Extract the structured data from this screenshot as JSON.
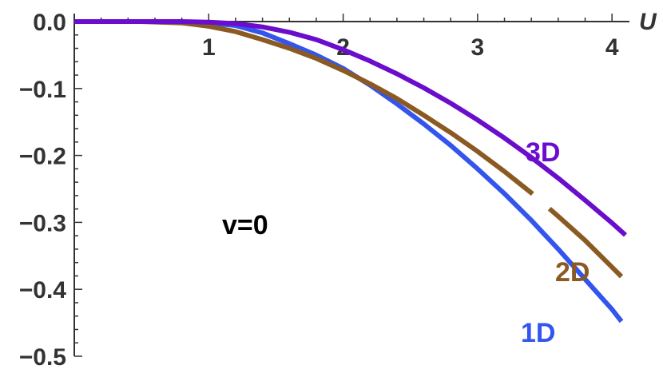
{
  "chart_data": {
    "type": "line",
    "title": "",
    "xlabel": "U",
    "ylabel": "",
    "xlim": [
      0,
      4.1
    ],
    "ylim": [
      -0.5,
      0
    ],
    "xticks": [
      1,
      2,
      3,
      4
    ],
    "yticks": [
      0.0,
      -0.1,
      -0.2,
      -0.3,
      -0.4,
      -0.5
    ],
    "xtick_labels": [
      "1",
      "2",
      "3",
      "4"
    ],
    "ytick_labels": [
      "0.0",
      "−0.1",
      "−0.2",
      "−0.3",
      "−0.4",
      "−0.5"
    ],
    "annotation": "v=0",
    "grid": false,
    "series": [
      {
        "name": "1D",
        "color": "#3355ee",
        "x": [
          0,
          0.5,
          0.8,
          1.0,
          1.2,
          1.4,
          1.6,
          1.8,
          2.0,
          2.2,
          2.4,
          2.6,
          2.8,
          3.0,
          3.2,
          3.4,
          3.6,
          3.8,
          4.0,
          4.07
        ],
        "y": [
          0,
          0,
          -0.0005,
          -0.002,
          -0.006,
          -0.017,
          -0.033,
          -0.05,
          -0.07,
          -0.095,
          -0.123,
          -0.153,
          -0.185,
          -0.22,
          -0.257,
          -0.297,
          -0.34,
          -0.385,
          -0.43,
          -0.448
        ]
      },
      {
        "name": "2D",
        "color": "#8b5a22",
        "x": [
          0,
          0.5,
          0.8,
          1.0,
          1.2,
          1.4,
          1.6,
          1.8,
          2.0,
          2.2,
          2.4,
          2.6,
          2.8,
          3.0,
          3.2,
          3.4,
          3.6,
          3.8,
          4.0,
          4.07
        ],
        "y": [
          0,
          0,
          -0.002,
          -0.007,
          -0.015,
          -0.027,
          -0.04,
          -0.055,
          -0.073,
          -0.093,
          -0.115,
          -0.14,
          -0.166,
          -0.194,
          -0.224,
          -0.256,
          -0.291,
          -0.327,
          -0.367,
          -0.381
        ]
      },
      {
        "name": "3D",
        "color": "#6a0dcc",
        "x": [
          0,
          0.5,
          0.8,
          1.0,
          1.2,
          1.4,
          1.6,
          1.8,
          2.0,
          2.2,
          2.4,
          2.6,
          2.8,
          3.0,
          3.2,
          3.4,
          3.6,
          3.8,
          4.0,
          4.1
        ],
        "y": [
          0,
          0,
          0,
          -0.001,
          -0.003,
          -0.008,
          -0.016,
          -0.027,
          -0.042,
          -0.059,
          -0.078,
          -0.099,
          -0.122,
          -0.147,
          -0.174,
          -0.203,
          -0.234,
          -0.267,
          -0.301,
          -0.319
        ]
      }
    ],
    "series_label_positions": [
      "bottom-right",
      "lower-right",
      "middle-right"
    ]
  }
}
